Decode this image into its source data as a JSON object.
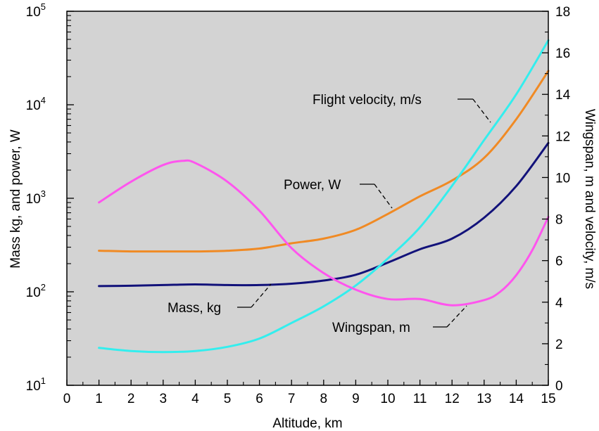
{
  "chart_data": {
    "type": "line",
    "title": "",
    "xlabel": "Altitude, km",
    "ylabel_left": "Mass kg, and power, W",
    "ylabel_right": "Wingspan, m and velocity, m/s",
    "xlim": [
      0,
      15
    ],
    "x_ticks": [
      "0",
      "1",
      "2",
      "3",
      "4",
      "5",
      "6",
      "7",
      "8",
      "9",
      "10",
      "11",
      "12",
      "13",
      "14",
      "15"
    ],
    "ylim_left": [
      10,
      100000
    ],
    "y_left_scale": "log",
    "y_left_ticks": [
      {
        "base": "10",
        "exp": "1"
      },
      {
        "base": "10",
        "exp": "2"
      },
      {
        "base": "10",
        "exp": "3"
      },
      {
        "base": "10",
        "exp": "4"
      },
      {
        "base": "10",
        "exp": "5"
      }
    ],
    "ylim_right": [
      0,
      18
    ],
    "y_right_ticks": [
      "0",
      "2",
      "4",
      "6",
      "8",
      "10",
      "12",
      "14",
      "16",
      "18"
    ],
    "background_color": "#d3d3d3",
    "grid": false,
    "series": [
      {
        "name": "Power, W",
        "axis": "left",
        "color": "#f08a24",
        "x": [
          1,
          2,
          3,
          4,
          5,
          6,
          7,
          8,
          9,
          10,
          11,
          12,
          13,
          14,
          15
        ],
        "y": [
          275,
          270,
          270,
          270,
          275,
          290,
          330,
          370,
          460,
          680,
          1050,
          1550,
          2700,
          7000,
          23000
        ]
      },
      {
        "name": "Mass, kg",
        "axis": "left",
        "color": "#12127a",
        "x": [
          1,
          2,
          3,
          4,
          5,
          6,
          7,
          8,
          9,
          10,
          11,
          12,
          13,
          14,
          15
        ],
        "y": [
          115,
          116,
          118,
          120,
          118,
          118,
          122,
          132,
          152,
          205,
          285,
          370,
          620,
          1350,
          3900
        ]
      },
      {
        "name": "Flight velocity, m/s",
        "axis": "right",
        "color": "#33eeee",
        "x": [
          1,
          2,
          3,
          4,
          5,
          6,
          7,
          8,
          9,
          10,
          11,
          12,
          13,
          14,
          15
        ],
        "y": [
          1.8,
          1.65,
          1.6,
          1.65,
          1.85,
          2.25,
          3.0,
          3.8,
          4.8,
          6.1,
          7.6,
          9.6,
          11.8,
          14.0,
          16.6
        ]
      },
      {
        "name": "Wingspan, m",
        "axis": "right",
        "color": "#ff55ee",
        "x": [
          1,
          2,
          3,
          3.6,
          4,
          5,
          6,
          7,
          8,
          9,
          10,
          11,
          12,
          13,
          13.5,
          14,
          14.5,
          15
        ],
        "y": [
          8.8,
          9.8,
          10.6,
          10.8,
          10.7,
          9.8,
          8.4,
          6.6,
          5.4,
          4.6,
          4.15,
          4.15,
          3.85,
          4.1,
          4.5,
          5.3,
          6.5,
          8.1
        ]
      }
    ],
    "annotations": [
      {
        "text": "Flight velocity, m/s",
        "series": "Flight velocity, m/s"
      },
      {
        "text": "Power, W",
        "series": "Power, W"
      },
      {
        "text": "Mass, kg",
        "series": "Mass, kg"
      },
      {
        "text": "Wingspan, m",
        "series": "Wingspan, m"
      }
    ]
  }
}
